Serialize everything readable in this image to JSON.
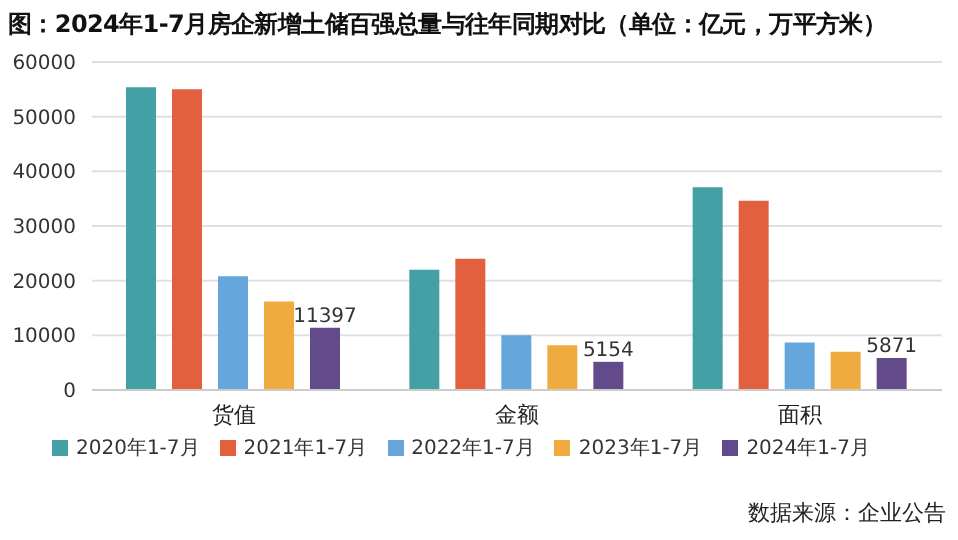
{
  "chart_data": {
    "type": "bar",
    "title": "图：2024年1-7月房企新增土储百强总量与往年同期对比（单位：亿元，万平方米）",
    "categories": [
      "货值",
      "金额",
      "面积"
    ],
    "series": [
      {
        "name": "2020年1-7月",
        "color": "#43a0a4",
        "values": [
          55400,
          22000,
          37100
        ]
      },
      {
        "name": "2021年1-7月",
        "color": "#e2603e",
        "values": [
          55000,
          24000,
          34600
        ]
      },
      {
        "name": "2022年1-7月",
        "color": "#65a6dc",
        "values": [
          20800,
          10000,
          8700
        ]
      },
      {
        "name": "2023年1-7月",
        "color": "#efab40",
        "values": [
          16200,
          8200,
          7000
        ]
      },
      {
        "name": "2024年1-7月",
        "color": "#634b8b",
        "values": [
          11397,
          5154,
          5871
        ],
        "value_labels": [
          "11397",
          "5154",
          "5871"
        ]
      }
    ],
    "ylim": [
      0,
      60000
    ],
    "yticks": [
      0,
      10000,
      20000,
      30000,
      40000,
      50000,
      60000
    ],
    "grid": "y",
    "legend": "bottom",
    "annotations": [
      "数据来源：企业公告"
    ]
  }
}
